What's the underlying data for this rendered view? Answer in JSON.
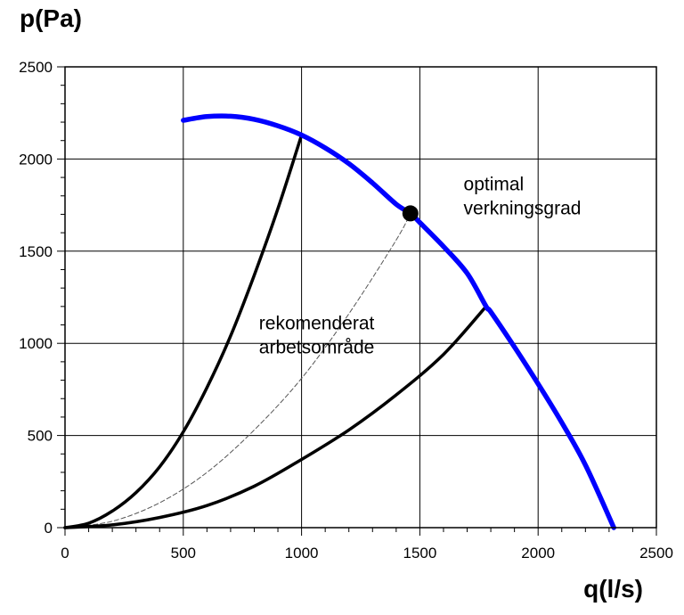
{
  "chart_data": {
    "type": "line",
    "xlabel": "q(l/s)",
    "ylabel": "p(Pa)",
    "xlim": [
      0,
      2500
    ],
    "ylim": [
      0,
      2500
    ],
    "xticks": [
      0,
      500,
      1000,
      1500,
      2000,
      2500
    ],
    "yticks": [
      0,
      500,
      1000,
      1500,
      2000,
      2500
    ],
    "grid": true,
    "series": [
      {
        "color": "#0000ff",
        "style": "thick",
        "x": [
          500,
          600,
          700,
          800,
          900,
          1000,
          1100,
          1200,
          1300,
          1400,
          1460,
          1500,
          1600,
          1700,
          1780,
          1800,
          1900,
          2000,
          2100,
          2200,
          2320
        ],
        "y": [
          2210,
          2230,
          2232,
          2215,
          2180,
          2130,
          2060,
          1975,
          1870,
          1755,
          1705,
          1655,
          1525,
          1380,
          1200,
          1170,
          980,
          780,
          570,
          340,
          0
        ]
      },
      {
        "color": "#000000",
        "style": "solid",
        "x": [
          0,
          100,
          200,
          300,
          400,
          500,
          600,
          700,
          800,
          900,
          1000
        ],
        "y": [
          0,
          24,
          90,
          190,
          330,
          520,
          760,
          1040,
          1370,
          1730,
          2130
        ]
      },
      {
        "color": "#000000",
        "style": "solid",
        "x": [
          0,
          200,
          400,
          600,
          800,
          1000,
          1200,
          1400,
          1600,
          1780
        ],
        "y": [
          0,
          15,
          55,
          120,
          225,
          370,
          530,
          720,
          940,
          1200
        ]
      },
      {
        "color": "#555555",
        "style": "dashed",
        "x": [
          0,
          200,
          400,
          600,
          800,
          1000,
          1200,
          1400,
          1460
        ],
        "y": [
          0,
          35,
          135,
          300,
          530,
          810,
          1160,
          1560,
          1705
        ]
      }
    ],
    "points": [
      {
        "x": 1460,
        "y": 1705
      }
    ],
    "annotations": [
      {
        "lines": [
          "optimal",
          "verkningsgrad"
        ],
        "x": 1685,
        "y": 1830
      },
      {
        "lines": [
          "rekomenderat",
          "arbetsområde"
        ],
        "x": 820,
        "y": 1075
      }
    ]
  }
}
